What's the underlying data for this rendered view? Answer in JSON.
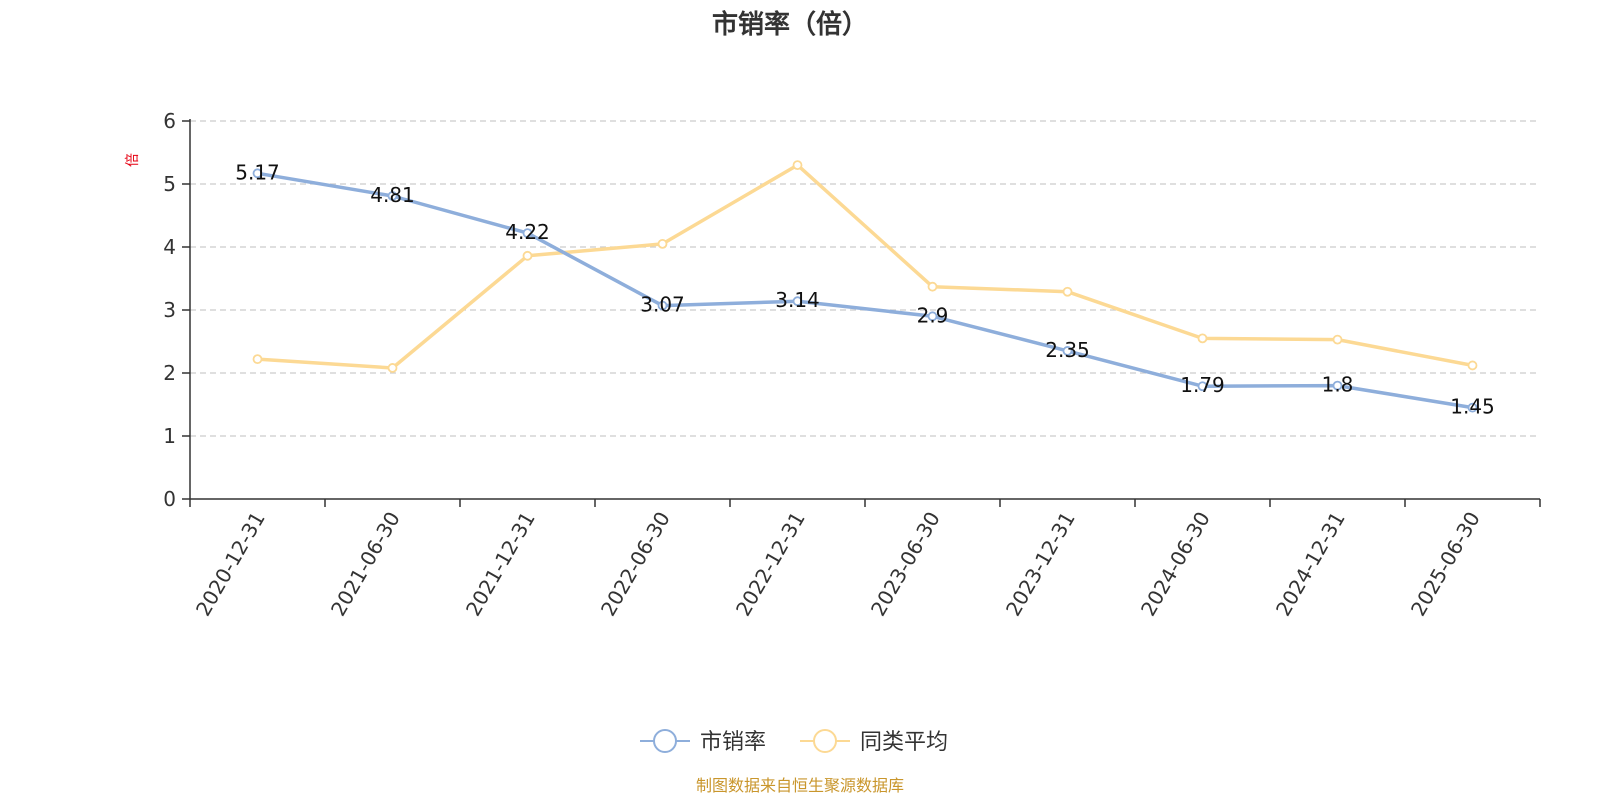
{
  "chart_data": {
    "type": "line",
    "title": "市销率（倍）",
    "ylabel": "倍",
    "xlabel": "",
    "ylim": [
      0,
      6
    ],
    "yticks": [
      0,
      1,
      2,
      3,
      4,
      5,
      6
    ],
    "grid": "horizontal-dashed",
    "legend_position": "bottom-center",
    "categories": [
      "2020-12-31",
      "2021-06-30",
      "2021-12-31",
      "2022-06-30",
      "2022-12-31",
      "2023-06-30",
      "2023-12-31",
      "2024-06-30",
      "2024-12-31",
      "2025-06-30"
    ],
    "series": [
      {
        "name": "市销率",
        "color": "#8eaedb",
        "values": [
          5.17,
          4.81,
          4.22,
          3.07,
          3.14,
          2.9,
          2.35,
          1.79,
          1.8,
          1.45
        ],
        "labels": [
          "5.17",
          "4.81",
          "4.22",
          "3.07",
          "3.14",
          "2.9",
          "2.35",
          "1.79",
          "1.8",
          "1.45"
        ]
      },
      {
        "name": "同类平均",
        "color": "#fcd994",
        "values": [
          2.22,
          2.08,
          3.86,
          4.05,
          5.3,
          3.37,
          3.29,
          2.55,
          2.53,
          2.12
        ]
      }
    ],
    "source": "制图数据来自恒生聚源数据库"
  }
}
